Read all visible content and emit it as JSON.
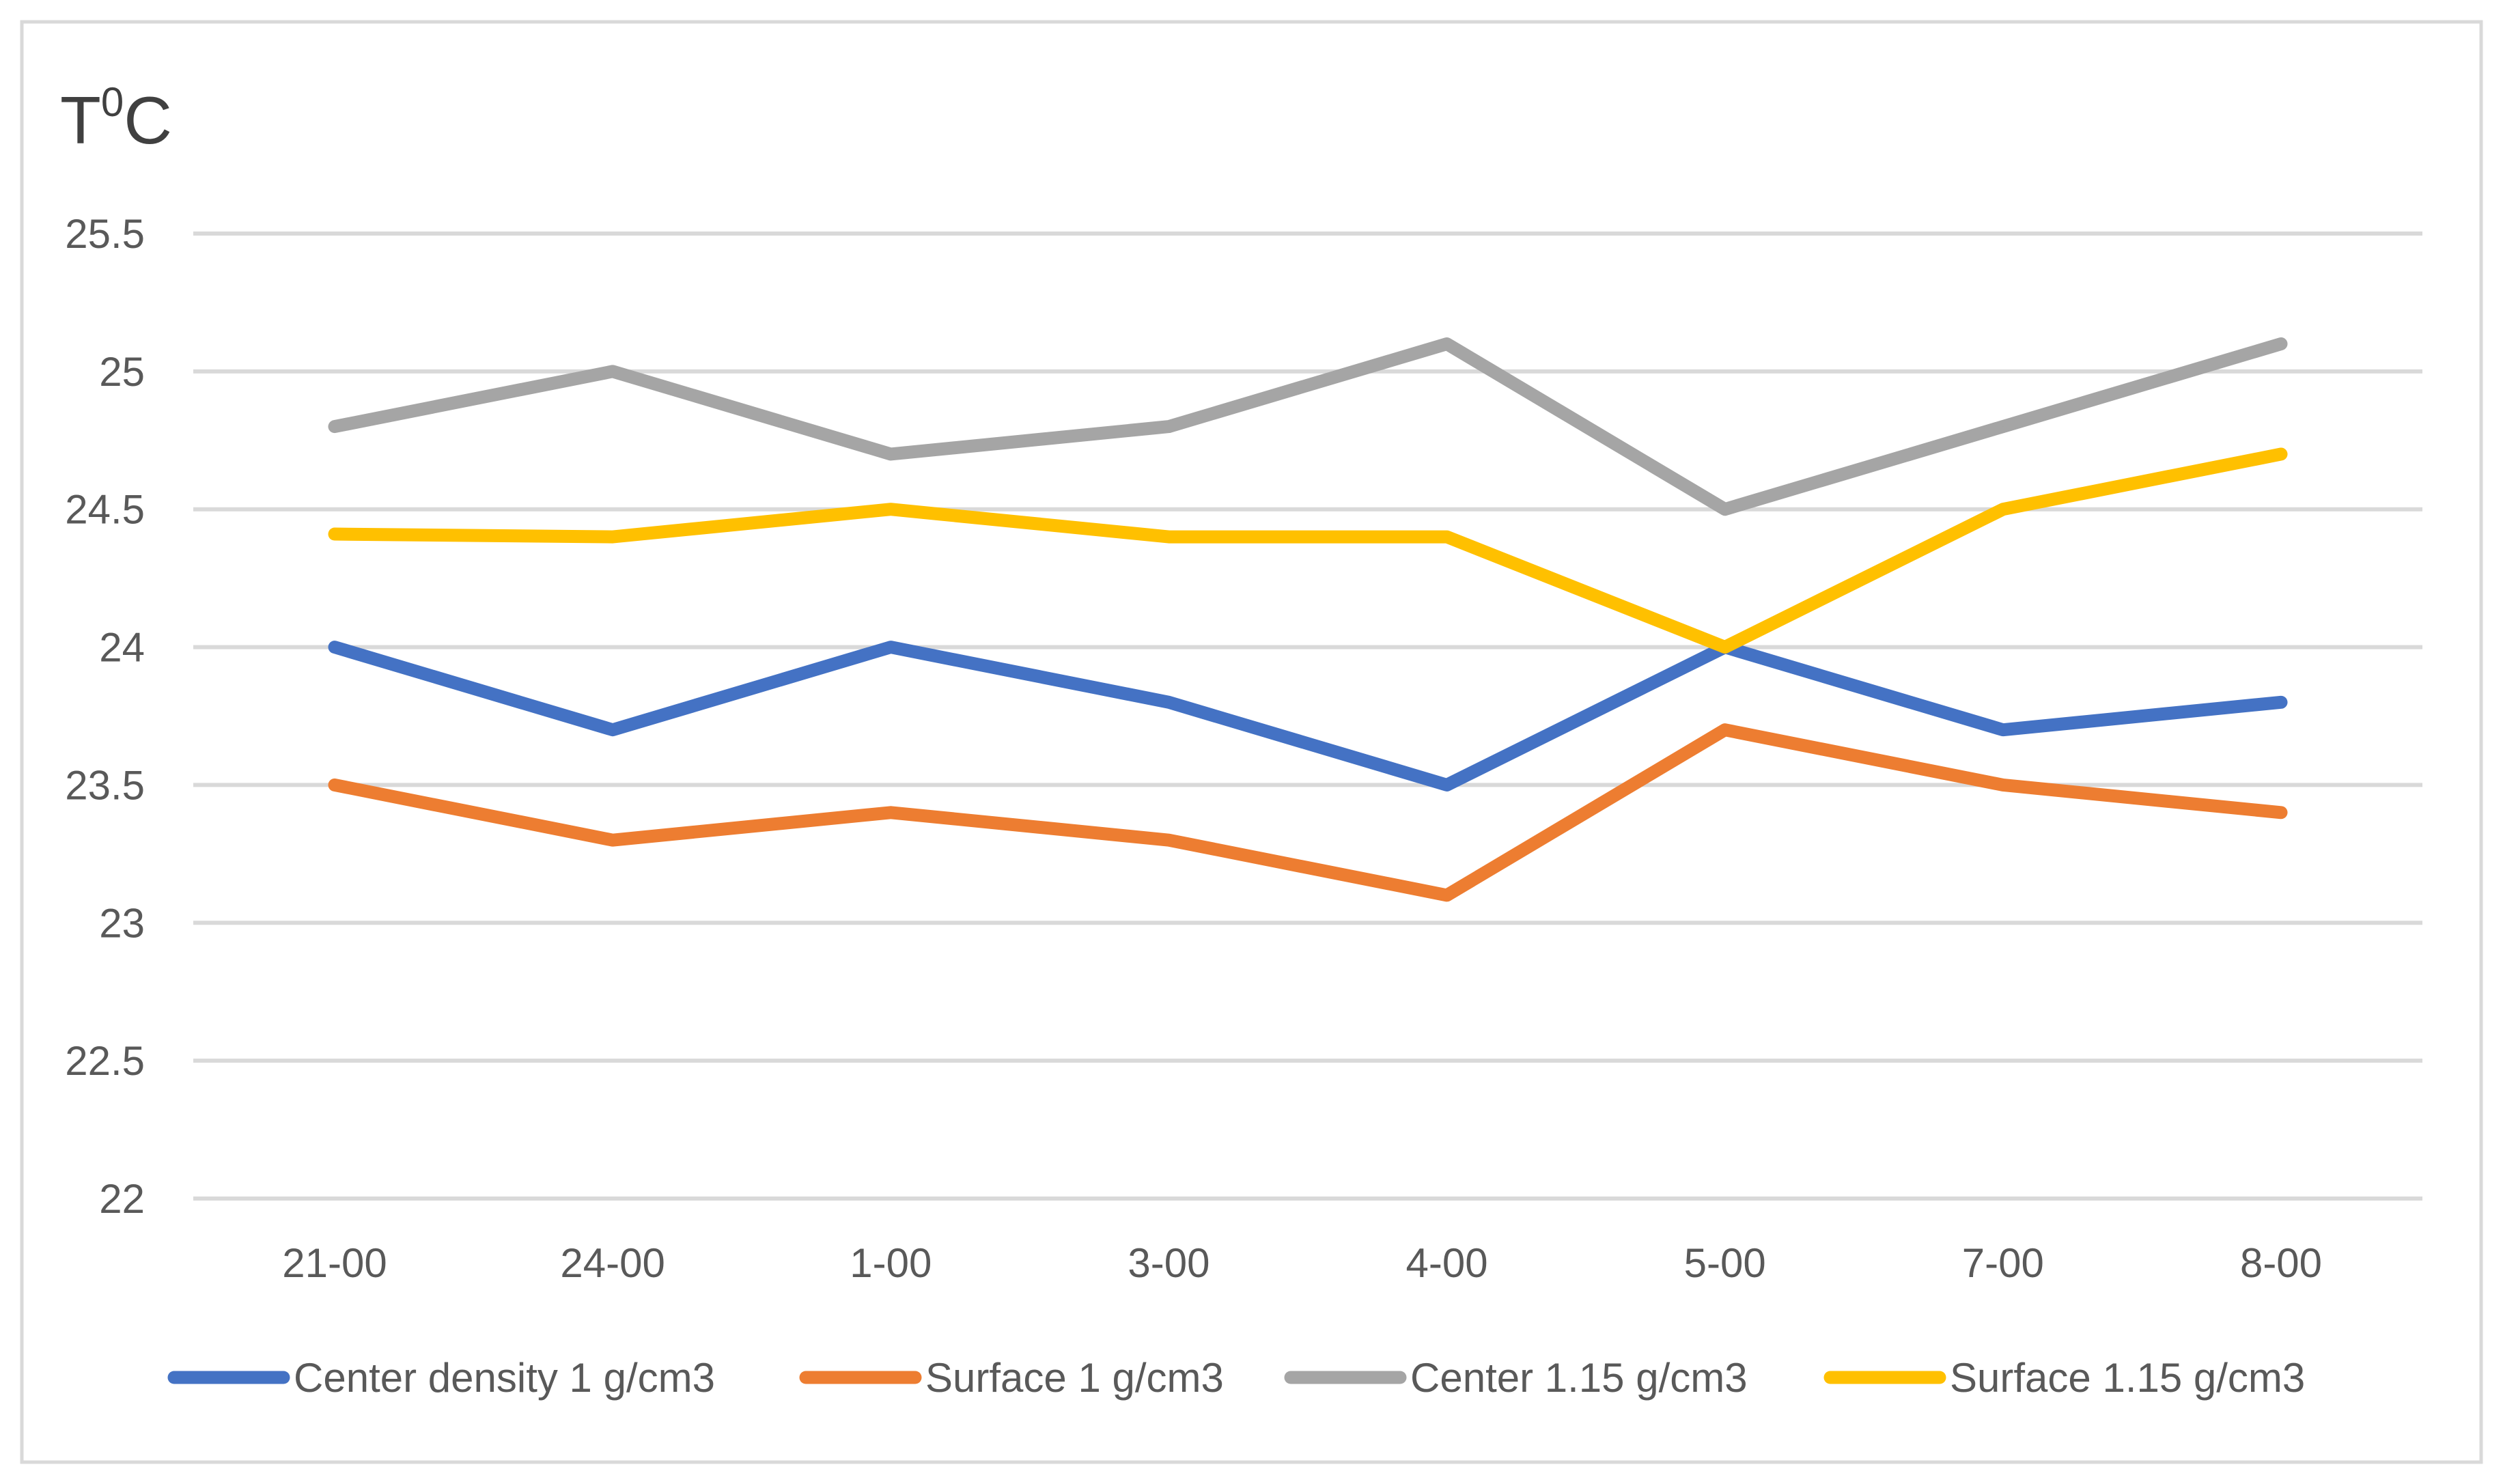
{
  "chart_data": {
    "type": "line",
    "title": "",
    "xlabel": "",
    "ylabel": "T",
    "ylabel_superscript": "0",
    "ylabel_suffix": "C",
    "categories": [
      "21-00",
      "24-00",
      "1-00",
      "3-00",
      "4-00",
      "5-00",
      "7-00",
      "8-00"
    ],
    "ylim": [
      22,
      25.5
    ],
    "yticks": [
      22,
      22.5,
      23,
      23.5,
      24,
      24.5,
      25,
      25.5
    ],
    "ytick_labels": [
      "22",
      "22.5",
      "23",
      "23.5",
      "24",
      "24.5",
      "25",
      "25.5"
    ],
    "grid": true,
    "legend_position": "bottom",
    "series": [
      {
        "name": "Center density 1 g/cm3",
        "color": "#4472C4",
        "values": [
          24.0,
          23.7,
          24.0,
          23.8,
          23.5,
          24.0,
          23.7,
          23.8
        ]
      },
      {
        "name": "Surface 1 g/cm3",
        "color": "#ED7D31",
        "values": [
          23.5,
          23.3,
          23.4,
          23.3,
          23.1,
          23.7,
          23.5,
          23.4
        ]
      },
      {
        "name": "Center 1.15 g/cm3",
        "color": "#A5A5A5",
        "values": [
          24.8,
          25.0,
          24.7,
          24.8,
          25.1,
          24.5,
          24.8,
          25.1
        ]
      },
      {
        "name": "Surface 1.15 g/cm3",
        "color": "#FFC000",
        "values": [
          24.41,
          24.4,
          24.5,
          24.4,
          24.4,
          24.0,
          24.5,
          24.7
        ]
      }
    ]
  }
}
